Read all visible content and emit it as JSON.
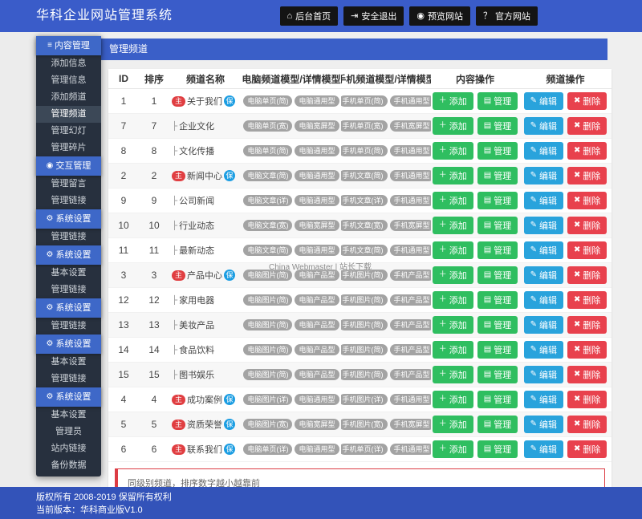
{
  "header": {
    "title": "华科企业网站管理系统",
    "nav": [
      {
        "key": "home",
        "icon": "home",
        "label": "后台首页"
      },
      {
        "key": "logout",
        "icon": "signout",
        "label": "安全退出"
      },
      {
        "key": "preview",
        "icon": "eye",
        "label": "预览网站"
      },
      {
        "key": "official",
        "icon": "question",
        "label": "官方网站"
      }
    ]
  },
  "icons": {
    "home": "⌂",
    "signout": "⇥",
    "eye": "◉",
    "question": "？",
    "menu": "≡",
    "target": "◉",
    "gear": "⚙",
    "plus": "＋",
    "list": "▤",
    "pencil": "✎",
    "trash": "✖"
  },
  "sidebar": {
    "items": [
      {
        "type": "header",
        "icon": "menu",
        "label": "内容管理"
      },
      {
        "type": "item",
        "label": "添加信息"
      },
      {
        "type": "item",
        "label": "管理信息"
      },
      {
        "type": "item",
        "label": "添加频道"
      },
      {
        "type": "item",
        "label": "管理频道",
        "active": true
      },
      {
        "type": "item",
        "label": "管理幻灯"
      },
      {
        "type": "item",
        "label": "管理碎片"
      },
      {
        "type": "header",
        "icon": "target",
        "label": "交互管理"
      },
      {
        "type": "item",
        "label": "管理留言"
      },
      {
        "type": "item",
        "label": "管理链接"
      },
      {
        "type": "header",
        "icon": "gear",
        "label": "系统设置"
      },
      {
        "type": "item",
        "label": "管理链接"
      },
      {
        "type": "header",
        "icon": "gear",
        "label": "系统设置"
      },
      {
        "type": "item",
        "label": "基本设置"
      },
      {
        "type": "item",
        "label": "管理链接"
      },
      {
        "type": "header",
        "icon": "gear",
        "label": "系统设置"
      },
      {
        "type": "item",
        "label": "管理链接"
      },
      {
        "type": "header",
        "icon": "gear",
        "label": "系统设置"
      },
      {
        "type": "item",
        "label": "基本设置"
      },
      {
        "type": "item",
        "label": "管理链接"
      },
      {
        "type": "header",
        "icon": "gear",
        "label": "系统设置"
      },
      {
        "type": "item",
        "label": "基本设置"
      },
      {
        "type": "item",
        "label": "管理员"
      },
      {
        "type": "item",
        "label": "站内链接"
      },
      {
        "type": "item",
        "label": "备份数据"
      }
    ]
  },
  "main": {
    "panel_title": "管理频道",
    "watermark": "China Webmaster | 站长下载",
    "note": "同级别频道，排序数字越小越靠前",
    "table": {
      "columns": [
        "ID",
        "排序",
        "频道名称",
        "电脑频道模型/详情模型",
        "手机频道模型/详情模型",
        "内容操作",
        "频道操作"
      ],
      "badges": {
        "main": "主",
        "keep": "保",
        "child_prefix": "├"
      },
      "buttons": {
        "add": "添加",
        "manage": "管理",
        "edit": "编辑",
        "delete": "删除"
      },
      "rows": [
        {
          "id": "1",
          "order": "1",
          "main": true,
          "name": "关于我们",
          "pc": [
            "电脑单页(简)",
            "电脑通用型"
          ],
          "mobile": [
            "手机单页(简)",
            "手机通用型"
          ]
        },
        {
          "id": "7",
          "order": "7",
          "main": false,
          "name": "企业文化",
          "pc": [
            "电脑单页(宽)",
            "电脑宽屏型"
          ],
          "mobile": [
            "手机单页(宽)",
            "手机宽屏型"
          ]
        },
        {
          "id": "8",
          "order": "8",
          "main": false,
          "name": "文化传播",
          "pc": [
            "电脑单页(简)",
            "电脑通用型"
          ],
          "mobile": [
            "手机单页(简)",
            "手机通用型"
          ]
        },
        {
          "id": "2",
          "order": "2",
          "main": true,
          "name": "新闻中心",
          "pc": [
            "电脑文章(简)",
            "电脑通用型"
          ],
          "mobile": [
            "手机文章(简)",
            "手机通用型"
          ]
        },
        {
          "id": "9",
          "order": "9",
          "main": false,
          "name": "公司新闻",
          "pc": [
            "电脑文章(详)",
            "电脑通用型"
          ],
          "mobile": [
            "手机文章(详)",
            "手机通用型"
          ]
        },
        {
          "id": "10",
          "order": "10",
          "main": false,
          "name": "行业动态",
          "pc": [
            "电脑文章(宽)",
            "电脑宽屏型"
          ],
          "mobile": [
            "手机文章(宽)",
            "手机宽屏型"
          ]
        },
        {
          "id": "11",
          "order": "11",
          "main": false,
          "name": "最新动态",
          "pc": [
            "电脑文章(简)",
            "电脑通用型"
          ],
          "mobile": [
            "手机文章(简)",
            "手机通用型"
          ]
        },
        {
          "id": "3",
          "order": "3",
          "main": true,
          "name": "产品中心",
          "pc": [
            "电脑图片(简)",
            "电脑产品型"
          ],
          "mobile": [
            "手机图片(简)",
            "手机产品型"
          ]
        },
        {
          "id": "12",
          "order": "12",
          "main": false,
          "name": "家用电器",
          "pc": [
            "电脑图片(简)",
            "电脑产品型"
          ],
          "mobile": [
            "手机图片(简)",
            "手机产品型"
          ]
        },
        {
          "id": "13",
          "order": "13",
          "main": false,
          "name": "美妆产品",
          "pc": [
            "电脑图片(简)",
            "电脑产品型"
          ],
          "mobile": [
            "手机图片(简)",
            "手机产品型"
          ]
        },
        {
          "id": "14",
          "order": "14",
          "main": false,
          "name": "食品饮料",
          "pc": [
            "电脑图片(简)",
            "电脑产品型"
          ],
          "mobile": [
            "手机图片(简)",
            "手机产品型"
          ]
        },
        {
          "id": "15",
          "order": "15",
          "main": false,
          "name": "图书娱乐",
          "pc": [
            "电脑图片(简)",
            "电脑产品型"
          ],
          "mobile": [
            "手机图片(简)",
            "手机产品型"
          ]
        },
        {
          "id": "4",
          "order": "4",
          "main": true,
          "name": "成功案例",
          "pc": [
            "电脑图片(详)",
            "电脑通用型"
          ],
          "mobile": [
            "手机图片(详)",
            "手机通用型"
          ]
        },
        {
          "id": "5",
          "order": "5",
          "main": true,
          "name": "资质荣誉",
          "pc": [
            "电脑图片(宽)",
            "电脑宽屏型"
          ],
          "mobile": [
            "手机图片(宽)",
            "手机宽屏型"
          ]
        },
        {
          "id": "6",
          "order": "6",
          "main": true,
          "name": "联系我们",
          "pc": [
            "电脑单页(详)",
            "电脑通用型"
          ],
          "mobile": [
            "手机单页(详)",
            "手机通用型"
          ]
        }
      ]
    }
  },
  "footer": {
    "line1": "版权所有 2008-2019 保留所有权利",
    "line2": "当前版本：华科商业版V1.0"
  },
  "colors": {
    "topbar": "#3a5cc9",
    "panel_title_bar": "#3a5fc8",
    "footer": "#3353b9",
    "sidebar_bg": "#27303e",
    "sidebar_header": "#3e68c8",
    "sidebar_active": "#3c4857",
    "button_green": "#2fbe60",
    "button_blue": "#29a3dc",
    "button_red": "#e8414d",
    "tag_gray": "#a3a3a3",
    "badge_main": "#e03e41",
    "badge_keep": "#1b9de2",
    "note_border": "#dc3c44"
  }
}
